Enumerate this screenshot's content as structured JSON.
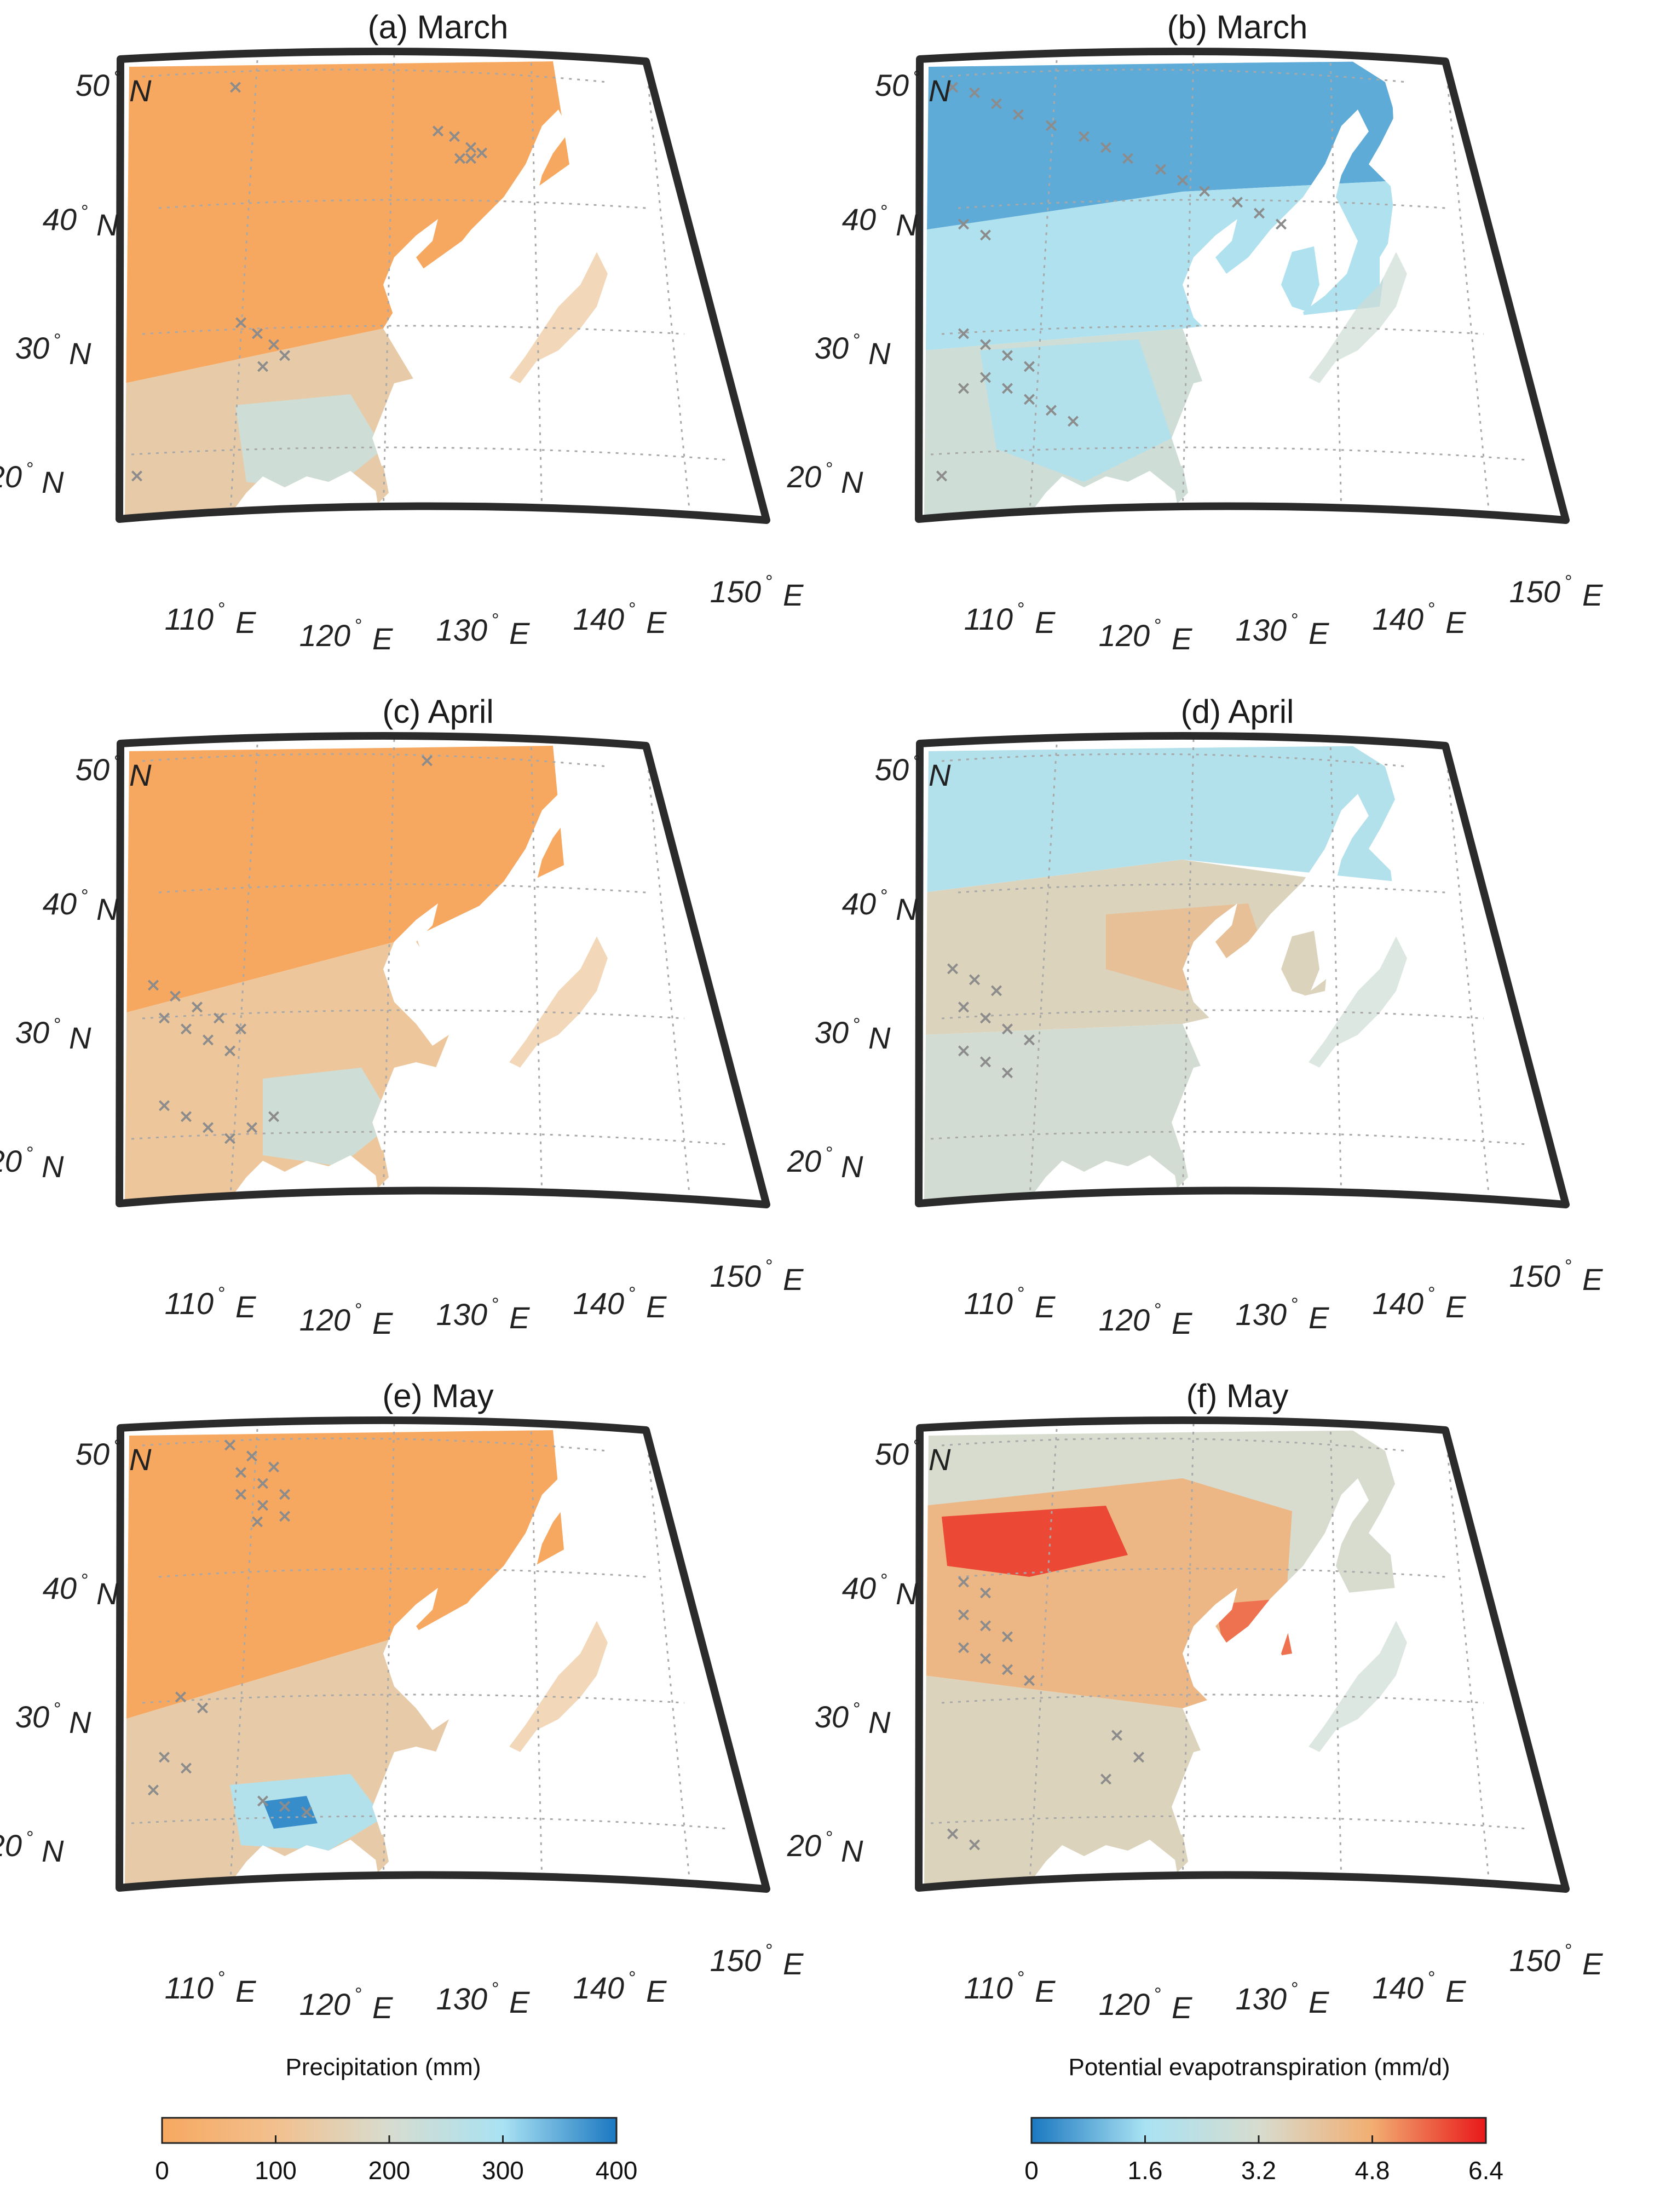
{
  "figure": {
    "panels": [
      {
        "id": "a",
        "title": "(a) March",
        "variable": "precipitation",
        "palette": "precip"
      },
      {
        "id": "b",
        "title": "(b) March",
        "variable": "pet",
        "palette": "pet"
      },
      {
        "id": "c",
        "title": "(c) April",
        "variable": "precipitation",
        "palette": "precip"
      },
      {
        "id": "d",
        "title": "(d) April",
        "variable": "pet",
        "palette": "pet"
      },
      {
        "id": "e",
        "title": "(e) May",
        "variable": "precipitation",
        "palette": "precip"
      },
      {
        "id": "f",
        "title": "(f) May",
        "variable": "pet",
        "palette": "pet"
      }
    ],
    "lat_labels": [
      {
        "value": "50",
        "deg": "°",
        "hem": "N"
      },
      {
        "value": "40",
        "deg": "°",
        "hem": "N"
      },
      {
        "value": "30",
        "deg": "°",
        "hem": "N"
      },
      {
        "value": "20",
        "deg": "°",
        "hem": "N"
      }
    ],
    "lon_labels": [
      {
        "value": "110",
        "deg": "°",
        "hem": "E"
      },
      {
        "value": "120",
        "deg": "°",
        "hem": "E"
      },
      {
        "value": "130",
        "deg": "°",
        "hem": "E"
      },
      {
        "value": "140",
        "deg": "°",
        "hem": "E"
      },
      {
        "value": "150",
        "deg": "°",
        "hem": "E"
      }
    ],
    "colorbars": [
      {
        "id": "precip",
        "title": "Precipitation (mm)",
        "range": [
          0,
          400
        ],
        "ticks": [
          "0",
          "100",
          "200",
          "300",
          "400"
        ],
        "stops": [
          "#f7a860",
          "#f2c08e",
          "#d7dccf",
          "#a9e2f3",
          "#1b78c0"
        ]
      },
      {
        "id": "pet",
        "title": "Potential evapotranspiration (mm/d)",
        "range": [
          0,
          6.4
        ],
        "ticks": [
          "0",
          "1.6",
          "3.2",
          "4.8",
          "6.4"
        ],
        "stops": [
          "#1b78c0",
          "#a9e2f3",
          "#d7dccf",
          "#f2ae72",
          "#e8181a"
        ]
      }
    ],
    "colors": {
      "land_dry": "#f7a860",
      "land_mid": "#e9d7bf",
      "land_wet": "#8fd0ee",
      "land_hot": "#ee3e25",
      "mask_marker": "#8c8c8c",
      "frame": "#2b2b2b",
      "gridline": "#a8a8a8"
    },
    "marker_symbol": "×"
  }
}
